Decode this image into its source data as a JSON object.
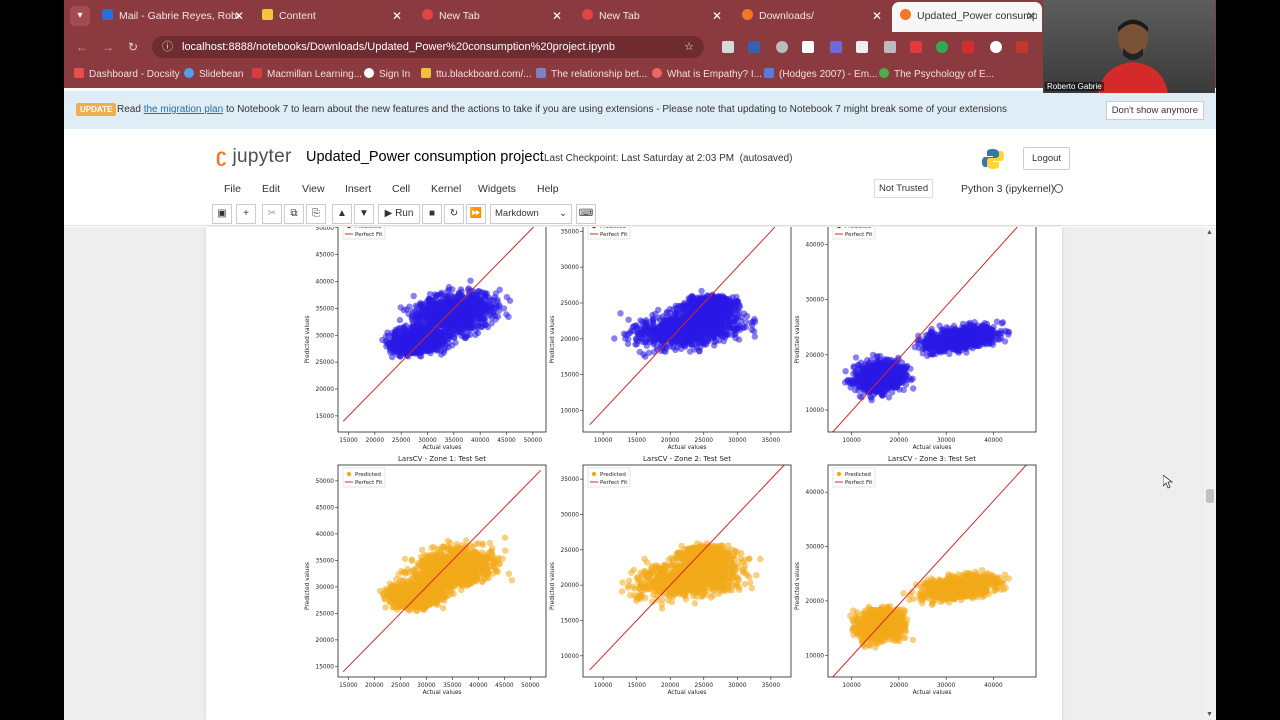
{
  "browser": {
    "tabs": [
      {
        "title": "Mail - Gabrie Reyes, Rober",
        "color": "#2a6fd6"
      },
      {
        "title": "Content",
        "color": "#333333"
      },
      {
        "title": "New Tab",
        "color": "#e04545"
      },
      {
        "title": "New Tab",
        "color": "#e04545"
      },
      {
        "title": "Downloads/",
        "color": "#f37726"
      },
      {
        "title": "Updated_Power consumpti",
        "color": "#f37726"
      }
    ],
    "url": "localhost:8888/notebooks/Downloads/Updated_Power%20consumption%20project.ipynb",
    "bookmarks": [
      {
        "label": "Dashboard - Docsity",
        "color": "#e94e4e"
      },
      {
        "label": "Slidebean",
        "color": "#4ea1e9"
      },
      {
        "label": "Macmillan Learning...",
        "color": "#d83c3c"
      },
      {
        "label": "Sign In",
        "color": "#ffffff"
      },
      {
        "label": "ttu.blackboard.com/...",
        "color": "#f0c040"
      },
      {
        "label": "The relationship bet...",
        "color": "#8080c0"
      },
      {
        "label": "What is Empathy? I...",
        "color": "#e66"
      },
      {
        "label": "(Hodges 2007) - Em...",
        "color": "#5a7ad6"
      },
      {
        "label": "The Psychology of E...",
        "color": "#4cae4c"
      }
    ]
  },
  "webcam": {
    "name": "Roberto Gabrie"
  },
  "banner": {
    "badge": "UPDATE",
    "read": "Read ",
    "link": "the migration plan",
    "rest": " to Notebook 7 to learn about the new features and the actions to take if you are using extensions - Please note that updating to Notebook 7 might break some of your extensions",
    "dismiss": "Don't show anymore"
  },
  "jupyter": {
    "logo": "jupyter",
    "title": "Updated_Power consumption project",
    "checkpoint": "Last Checkpoint: Last Saturday at 2:03 PM",
    "autosaved": "(autosaved)",
    "logout": "Logout",
    "menus": [
      "File",
      "Edit",
      "View",
      "Insert",
      "Cell",
      "Kernel",
      "Widgets",
      "Help"
    ],
    "trust": "Not Trusted",
    "kernel": "Python 3 (ipykernel)",
    "run": "Run",
    "cell_type": "Markdown"
  },
  "chart_data": [
    {
      "type": "scatter",
      "title": "",
      "xlabel": "Actual values",
      "ylabel": "Predicted values",
      "legend": [
        "Predicted",
        "Perfect Fit"
      ],
      "color": "#2a1ae6",
      "xlim": [
        13000,
        52500
      ],
      "ylim": [
        12000,
        52000
      ],
      "xticks": [
        15000,
        20000,
        25000,
        30000,
        35000,
        40000,
        45000,
        50000
      ],
      "yticks": [
        15000,
        20000,
        25000,
        30000,
        35000,
        40000,
        45000,
        50000
      ],
      "fit": [
        [
          14000,
          14000
        ],
        [
          52000,
          52000
        ]
      ],
      "points": [
        {
          "cx": 35000,
          "cy": 34000,
          "rx": 13500,
          "ry": 7000,
          "rot": 10
        },
        {
          "cx": 28000,
          "cy": 29000,
          "rx": 9000,
          "ry": 4000,
          "rot": 5
        }
      ]
    },
    {
      "type": "scatter",
      "title": "",
      "xlabel": "Actual values",
      "ylabel": "Predicted values",
      "legend": [
        "Predicted",
        "Perfect Fit"
      ],
      "color": "#2a1ae6",
      "xlim": [
        7000,
        38000
      ],
      "ylim": [
        7000,
        37000
      ],
      "xticks": [
        10000,
        15000,
        20000,
        25000,
        30000,
        35000
      ],
      "yticks": [
        10000,
        15000,
        20000,
        25000,
        30000,
        35000
      ],
      "fit": [
        [
          8000,
          8000
        ],
        [
          37000,
          37000
        ]
      ],
      "points": [
        {
          "cx": 23000,
          "cy": 21500,
          "rx": 14000,
          "ry": 4500,
          "rot": 7
        },
        {
          "cx": 26000,
          "cy": 24500,
          "rx": 6000,
          "ry": 2500,
          "rot": 0
        }
      ]
    },
    {
      "type": "scatter",
      "title": "",
      "xlabel": "Actual values",
      "ylabel": "Predicted values",
      "legend": [
        "Predicted",
        "Perfect Fit"
      ],
      "color": "#2a1ae6",
      "xlim": [
        5000,
        49000
      ],
      "ylim": [
        6000,
        45000
      ],
      "xticks": [
        10000,
        20000,
        30000,
        40000
      ],
      "yticks": [
        10000,
        20000,
        30000,
        40000
      ],
      "fit": [
        [
          6000,
          6000
        ],
        [
          48000,
          46000
        ]
      ],
      "points": [
        {
          "cx": 16000,
          "cy": 16000,
          "rx": 9000,
          "ry": 5000,
          "rot": 5
        },
        {
          "cx": 33000,
          "cy": 23000,
          "rx": 14000,
          "ry": 3500,
          "rot": 8
        }
      ]
    },
    {
      "type": "scatter",
      "title": "LarsCV - Zone 1: Test Set",
      "xlabel": "Actual values",
      "ylabel": "Predicted values",
      "legend": [
        "Predicted",
        "Perfect Fit"
      ],
      "color": "#f2aa1a",
      "xlim": [
        13000,
        53000
      ],
      "ylim": [
        13000,
        53000
      ],
      "xticks": [
        15000,
        20000,
        25000,
        30000,
        35000,
        40000,
        45000,
        50000
      ],
      "yticks": [
        15000,
        20000,
        25000,
        30000,
        35000,
        40000,
        45000,
        50000
      ],
      "fit": [
        [
          14000,
          14000
        ],
        [
          52000,
          52000
        ]
      ],
      "points": [
        {
          "cx": 35000,
          "cy": 33500,
          "rx": 14000,
          "ry": 7000,
          "rot": 10
        },
        {
          "cx": 28000,
          "cy": 28500,
          "rx": 9000,
          "ry": 4000,
          "rot": 5
        }
      ]
    },
    {
      "type": "scatter",
      "title": "LarsCV - Zone 2: Test Set",
      "xlabel": "Actual values",
      "ylabel": "Predicted values",
      "legend": [
        "Predicted",
        "Perfect Fit"
      ],
      "color": "#f2aa1a",
      "xlim": [
        7000,
        38000
      ],
      "ylim": [
        7000,
        37000
      ],
      "xticks": [
        10000,
        15000,
        20000,
        25000,
        30000,
        35000
      ],
      "yticks": [
        10000,
        15000,
        20000,
        25000,
        30000,
        35000
      ],
      "fit": [
        [
          8000,
          8000
        ],
        [
          37000,
          37000
        ]
      ],
      "points": [
        {
          "cx": 23000,
          "cy": 21000,
          "rx": 14000,
          "ry": 4500,
          "rot": 7
        },
        {
          "cx": 25000,
          "cy": 24000,
          "rx": 6000,
          "ry": 2500,
          "rot": 0
        }
      ]
    },
    {
      "type": "scatter",
      "title": "LarsCV - Zone 3: Test Set",
      "xlabel": "Actual values",
      "ylabel": "Predicted values",
      "legend": [
        "Predicted",
        "Perfect Fit"
      ],
      "color": "#f2aa1a",
      "xlim": [
        5000,
        49000
      ],
      "ylim": [
        6000,
        45000
      ],
      "xticks": [
        10000,
        20000,
        30000,
        40000
      ],
      "yticks": [
        10000,
        20000,
        30000,
        40000
      ],
      "fit": [
        [
          6000,
          6000
        ],
        [
          48000,
          46000
        ]
      ],
      "points": [
        {
          "cx": 16000,
          "cy": 15500,
          "rx": 9000,
          "ry": 5000,
          "rot": 5
        },
        {
          "cx": 33000,
          "cy": 22500,
          "rx": 14000,
          "ry": 3500,
          "rot": 8
        }
      ]
    }
  ]
}
